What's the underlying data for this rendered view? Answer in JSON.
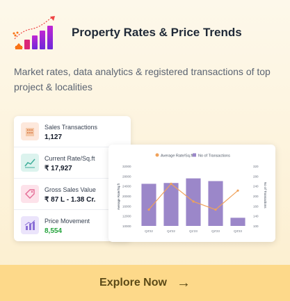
{
  "header": {
    "title": "Property Rates & Price Trends"
  },
  "subtitle": "Market rates, data analytics & registered transactions of top project & localities",
  "stats": [
    {
      "label": "Sales Transactions",
      "value": "1,127",
      "icon": "building-icon",
      "icon_bg": "#fde8dc",
      "value_color": "#111827"
    },
    {
      "label": "Current Rate/Sq.ft",
      "value": "₹ 17,927",
      "icon": "line-chart-icon",
      "icon_bg": "#dcf3ee",
      "value_color": "#111827"
    },
    {
      "label": "Gross Sales Value",
      "value": "₹ 87 L - 1.38 Cr.",
      "icon": "price-tag-icon",
      "icon_bg": "#fde2ea",
      "value_color": "#111827"
    },
    {
      "label": "Price Movement",
      "value": "8,554",
      "icon": "bar-chart-icon",
      "icon_bg": "#ebe4fb",
      "value_color": "#22a33a"
    }
  ],
  "chart_data": {
    "type": "bar",
    "categories": [
      "Q3'22",
      "Q4'22",
      "Q1'23",
      "Q2'23",
      "Q3'23"
    ],
    "series": [
      {
        "name": "No of Transactions",
        "type": "bar",
        "axis": "right",
        "color": "#9b87c9",
        "values": [
          255,
          258,
          275,
          265,
          130
        ]
      },
      {
        "name": "Average Rate/Sq.ft",
        "type": "line",
        "axis": "left",
        "color": "#f0a25a",
        "values": [
          16000,
          25500,
          19000,
          16000,
          23000
        ]
      }
    ],
    "ylabel": "Average Rate/Sq.ft",
    "y2label": "No of Transactions",
    "ylim": [
      10000,
      32000
    ],
    "y_ticks": [
      "32000",
      "28000",
      "24000",
      "20000",
      "16000",
      "12000",
      "10000"
    ],
    "y2lim": [
      100,
      320
    ],
    "y2_ticks": [
      "320",
      "280",
      "240",
      "200",
      "160",
      "140",
      "100"
    ],
    "legend_position": "top-center"
  },
  "cta": {
    "label": "Explore Now",
    "arrow": "→"
  },
  "colors": {
    "accent_purple": "#7c3aed",
    "cta_bg": "#fdd98a",
    "cta_text": "#5b4a17"
  }
}
